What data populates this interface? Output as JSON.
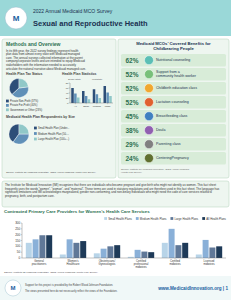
{
  "chart_data": [
    {
      "type": "pie",
      "title": "Health Plan Tax Status",
      "categories": [
        "Private Non-Profit (37%)",
        "Private For-Profit (40%)",
        "Government or Other (23%)"
      ],
      "values": [
        37,
        40,
        23
      ],
      "colors": [
        "#2d4e78",
        "#6090b8",
        "#90c8c8"
      ],
      "legend": "bottom",
      "annotations": [
        "M",
        "2022 Annual Medicaid MCO Survey",
        "Sexual and Reproductive Health",
        "Methods and Overview",
        "In its fifth year, the 2022 survey findings represent health",
        "plan data from almost every state with Medicaid managed",
        "care. The annual surveys collected information at the parent",
        "company/corporate levels and are intended to equip Medicaid",
        "stakeholders with the information needed to accurately",
        "articulate the national narrative about Medicaid managed care.",
        "Source: Institute for Medicaid Innovation, '2022 Annual Medicaid Health Plan Survey'"
      ]
    },
    {
      "type": "bar",
      "title": "Health Plan Statistics",
      "categories": [
        "All",
        "Small",
        "Medium",
        "Large"
      ],
      "series": [
        {
          "color": "#2d4e78",
          "values": [
            60,
            48,
            55,
            68
          ]
        },
        {
          "color": "#6090b8",
          "values": [
            38,
            28,
            35,
            42
          ]
        },
        {
          "color": "#90c8c8",
          "values": [
            22,
            15,
            20,
            28
          ]
        }
      ],
      "ylim": [
        0,
        80
      ],
      "yticks": [
        0,
        20,
        40,
        60,
        80
      ],
      "annotations": [
        "Single State",
        "Multistate"
      ]
    },
    {
      "type": "pie",
      "title": "Medicaid Health Plan Respondents by Size",
      "categories": [
        "Small Health Plan (Under...",
        "Medium Health Plan (50-...",
        "Large Health Plan (100+...)"
      ],
      "values": [
        40,
        35,
        25
      ],
      "colors": [
        "#2d4e78",
        "#6090b8",
        "#90c8c8"
      ],
      "legend": "right"
    },
    {
      "type": "list",
      "title": "Medicaid MCOs’ Covered Benefits for\nChildbearing People",
      "categories": [
        "Nutritional counseling",
        "Support from a\ncommunity health worker",
        "Childbirth education class",
        "Lactation counseling",
        "Breastfeeding class",
        "Doula",
        "Parenting class",
        "CenteringPregnancy"
      ],
      "values": [
        62,
        52,
        52,
        52,
        45,
        38,
        29,
        24
      ],
      "value_labels": [
        "62%",
        "52%",
        "52%",
        "52%",
        "45%",
        "38%",
        "29%",
        "24%"
      ],
      "colors": [
        "#5bbfb5",
        "#78c07a",
        "#f0a830",
        "#e06030",
        "#4080c0",
        "#9060b0",
        "#808080",
        "#607030"
      ],
      "data_labels": true,
      "annotations": [
        "Source: Institute for Medicaid Innovation, '2022 Annual Medicaid\nHealth Plan Survey'"
      ]
    },
    {
      "type": "bar",
      "title": "Contracted Primary Care Providers for Women’s Health Care Services",
      "categories": [
        "General\npractitioners",
        "Women’s\nHealthcare",
        "Obstetricians/\nGynecologists",
        "Certified\nprofessional\nmidwives",
        "Certified\nmidwives",
        "Licensed\nmidwives"
      ],
      "series": [
        {
          "name": "Small Health Plans",
          "color": "#b8d4e8",
          "values": [
            130,
            30,
            40,
            10,
            130,
            30
          ]
        },
        {
          "name": "Medium Health Plans",
          "color": "#8ab0d8",
          "values": [
            160,
            160,
            80,
            70,
            250,
            155
          ]
        },
        {
          "name": "Large Health Plans",
          "color": "#607898",
          "values": [
            195,
            130,
            100,
            55,
            110,
            90
          ]
        },
        {
          "name": "All Health Plans",
          "color": "#1e3a58",
          "values": [
            195,
            145,
            110,
            50,
            130,
            100
          ]
        }
      ],
      "ylim": [
        0,
        300
      ],
      "yticks": [
        0,
        50,
        100,
        150,
        200,
        250,
        300
      ],
      "legend": "upper right",
      "annotations": [
        "The Institute for Medicaid Innovation (IMI) recognizes that there are individuals who become pregnant and give birth who might not identify as women. This fact sheet frequently uses the words “women”, “woman”, and “maternal”. These terms are used in statutory regulations and are therefore used in this fact sheet. The language has significant limitations and IMI acknowledges marginalized, gender non-conforming, and non-binary individuals who might need the code of care services related to pregnancy, birth, and postpartum care.",
        "Source: Institute for Medicaid Innovation, '2022 Annual Medicaid Health Plan Survey'",
        "M",
        "Support for this project is provided by the Robert Wood Johnson Foundation.",
        "The views presented here do not necessarily reflect the views of the Foundation.",
        "www.MedicaidInnovation.org | 1"
      ]
    }
  ]
}
